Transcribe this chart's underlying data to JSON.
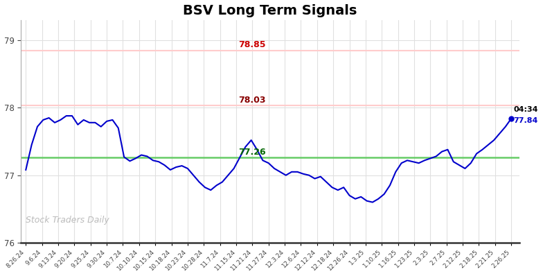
{
  "title": "BSV Long Term Signals",
  "title_fontsize": 14,
  "title_fontweight": "bold",
  "line_color": "#0000cc",
  "line_width": 1.5,
  "resistance1": 78.85,
  "resistance1_color": "#ffcccc",
  "resistance1_label": "78.85",
  "resistance1_label_color": "#cc0000",
  "resistance2": 78.03,
  "resistance2_color": "#ffcccc",
  "resistance2_label": "78.03",
  "resistance2_label_color": "#880000",
  "support": 77.26,
  "support_color": "#66cc66",
  "support_label": "77.26",
  "support_label_color": "#006600",
  "last_price": 77.84,
  "last_time": "04:34",
  "last_label_color": "#0000cc",
  "watermark": "Stock Traders Daily",
  "watermark_color": "#bbbbbb",
  "ylim": [
    76.0,
    79.3
  ],
  "yticks": [
    76,
    77,
    78,
    79
  ],
  "bg_color": "#ffffff",
  "grid_color": "#e0e0e0",
  "x_labels": [
    "8.26.24",
    "9.6.24",
    "9.13.24",
    "9.20.24",
    "9.25.24",
    "9.30.24",
    "10.7.24",
    "10.10.24",
    "10.15.24",
    "10.18.24",
    "10.23.24",
    "10.28.24",
    "11.7.24",
    "11.15.24",
    "11.21.24",
    "11.27.24",
    "12.3.24",
    "12.6.24",
    "12.12.24",
    "12.18.24",
    "12.26.24",
    "1.3.25",
    "1.10.25",
    "1.16.25",
    "1.23.25",
    "2.3.25",
    "2.7.25",
    "2.12.25",
    "2.18.25",
    "2.21.25",
    "2.26.25"
  ],
  "y_values": [
    77.08,
    77.45,
    77.72,
    77.82,
    77.85,
    77.78,
    77.82,
    77.88,
    77.88,
    77.75,
    77.82,
    77.78,
    77.78,
    77.72,
    77.8,
    77.82,
    77.7,
    77.27,
    77.21,
    77.25,
    77.3,
    77.28,
    77.22,
    77.2,
    77.15,
    77.08,
    77.12,
    77.14,
    77.1,
    77.0,
    76.9,
    76.82,
    76.78,
    76.85,
    76.9,
    77.0,
    77.1,
    77.26,
    77.42,
    77.52,
    77.38,
    77.22,
    77.18,
    77.1,
    77.05,
    77.0,
    77.05,
    77.05,
    77.02,
    77.0,
    76.95,
    76.98,
    76.9,
    76.82,
    76.78,
    76.82,
    76.7,
    76.65,
    76.68,
    76.62,
    76.6,
    76.65,
    76.72,
    76.85,
    77.05,
    77.18,
    77.22,
    77.2,
    77.18,
    77.22,
    77.25,
    77.28,
    77.35,
    77.38,
    77.2,
    77.15,
    77.1,
    77.18,
    77.32,
    77.38,
    77.45,
    77.52,
    77.62,
    77.72,
    77.84
  ]
}
